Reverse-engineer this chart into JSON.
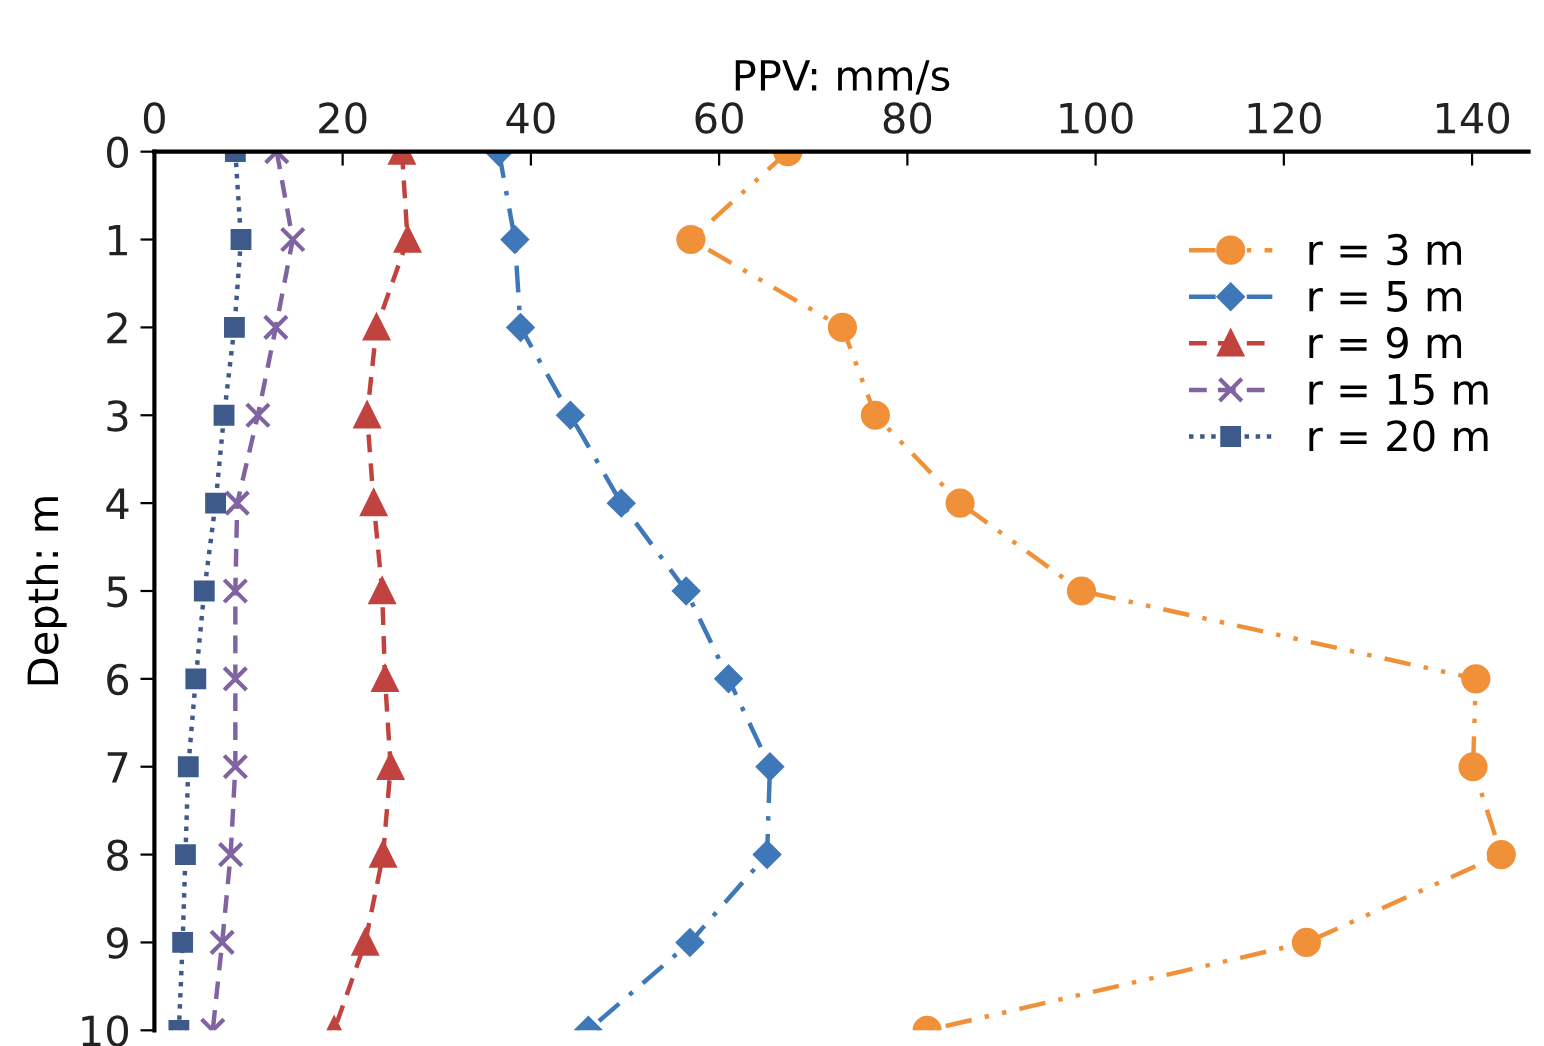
{
  "chart_data": {
    "type": "line",
    "xlabel": "PPV: mm/s",
    "ylabel": "Depth: m",
    "xlim": [
      0,
      146
    ],
    "xticks": [
      0,
      20,
      40,
      60,
      80,
      100,
      120,
      140
    ],
    "ylim": [
      10,
      0
    ],
    "yticks": [
      0,
      1,
      2,
      3,
      4,
      5,
      6,
      7,
      8,
      9,
      10
    ],
    "grid": false,
    "legend": "top right",
    "series": [
      {
        "name": "r = 3 m",
        "color": "#f0913a",
        "marker": "circle",
        "line_style": "dashdotdot",
        "x": [
          67.3,
          57.0,
          73.1,
          76.6,
          85.6,
          98.5,
          140.4,
          140.1,
          143.1,
          122.4,
          82.1
        ],
        "values": [
          0,
          1,
          2,
          3,
          4,
          5,
          6,
          7,
          8,
          9,
          10
        ]
      },
      {
        "name": "r = 5 m",
        "color": "#3f78b8",
        "marker": "diamond",
        "line_style": "dashdot",
        "x": [
          36.6,
          38.3,
          38.9,
          44.2,
          49.6,
          56.5,
          61.0,
          65.4,
          65.1,
          56.9,
          46.1
        ],
        "values": [
          0,
          1,
          2,
          3,
          4,
          5,
          6,
          7,
          8,
          9,
          10
        ]
      },
      {
        "name": "r = 9 m",
        "color": "#c0433f",
        "marker": "triangle",
        "line_style": "dashed",
        "x": [
          26.3,
          26.9,
          23.6,
          22.6,
          23.3,
          24.2,
          24.5,
          25.1,
          24.3,
          22.4,
          19.1
        ],
        "values": [
          0,
          1,
          2,
          3,
          4,
          5,
          6,
          7,
          8,
          9,
          10
        ]
      },
      {
        "name": "r = 15 m",
        "color": "#8064a2",
        "marker": "cross",
        "line_style": "dashed",
        "x": [
          13.0,
          14.7,
          12.9,
          11.0,
          8.8,
          8.6,
          8.6,
          8.6,
          8.1,
          7.2,
          6.2
        ],
        "values": [
          0,
          1,
          2,
          3,
          4,
          5,
          6,
          7,
          8,
          9,
          10
        ]
      },
      {
        "name": "r = 20 m",
        "color": "#3d5a8a",
        "marker": "square",
        "line_style": "dotted",
        "x": [
          8.6,
          9.2,
          8.5,
          7.4,
          6.5,
          5.3,
          4.4,
          3.6,
          3.3,
          3.0,
          2.6
        ],
        "values": [
          0,
          1,
          2,
          3,
          4,
          5,
          6,
          7,
          8,
          9,
          10
        ]
      }
    ]
  }
}
